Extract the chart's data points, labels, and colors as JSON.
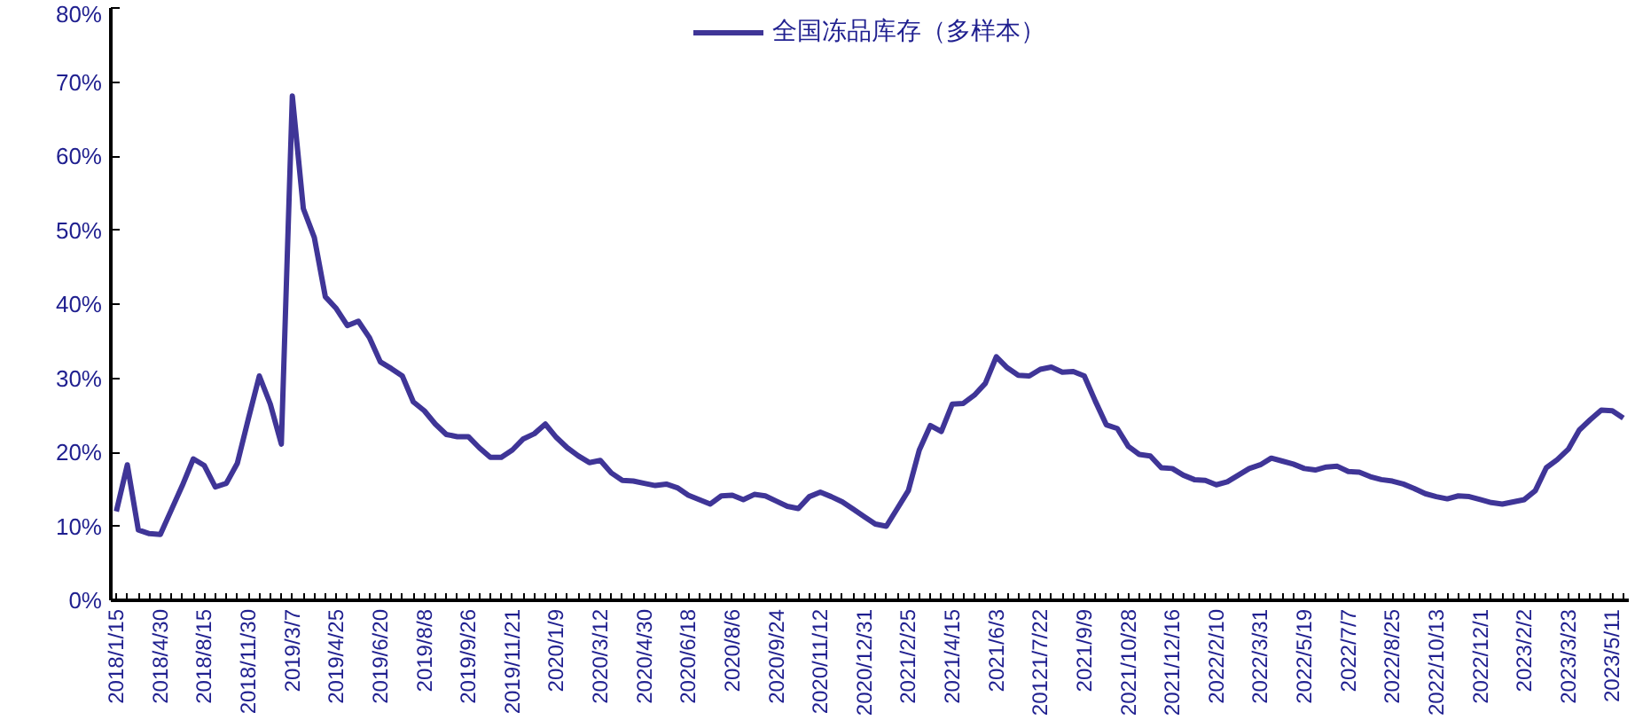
{
  "chart_data": {
    "type": "line",
    "legend": "top",
    "grid": false,
    "marker": "none",
    "line_style": "solid",
    "categories": [
      "2018/1/15",
      null,
      null,
      null,
      "2018/4/30",
      null,
      null,
      null,
      "2018/8/15",
      null,
      null,
      null,
      "2018/11/30",
      null,
      null,
      null,
      "2019/3/7",
      null,
      null,
      null,
      "2019/4/25",
      null,
      null,
      null,
      "2019/6/20",
      null,
      null,
      null,
      "2019/8/8",
      null,
      null,
      null,
      "2019/9/26",
      null,
      null,
      null,
      "2019/11/21",
      null,
      null,
      null,
      "2020/1/9",
      null,
      null,
      null,
      "2020/3/12",
      null,
      null,
      null,
      "2020/4/30",
      null,
      null,
      null,
      "2020/6/18",
      null,
      null,
      null,
      "2020/8/6",
      null,
      null,
      null,
      "2020/9/24",
      null,
      null,
      null,
      "2020/11/12",
      null,
      null,
      null,
      "2020/12/31",
      null,
      null,
      null,
      "2021/2/25",
      null,
      null,
      null,
      "2021/4/15",
      null,
      null,
      null,
      "2021/6/3",
      null,
      null,
      null,
      "20121/7/22",
      null,
      null,
      null,
      "2021/9/9",
      null,
      null,
      null,
      "2021/10/28",
      null,
      null,
      null,
      "2021/12/16",
      null,
      null,
      null,
      "2022/2/10",
      null,
      null,
      null,
      "2022/3/31",
      null,
      null,
      null,
      "2022/5/19",
      null,
      null,
      null,
      "2022/7/7",
      null,
      null,
      null,
      "2022/8/25",
      null,
      null,
      null,
      "2022/10/13",
      null,
      null,
      null,
      "2022/12/1",
      null,
      null,
      null,
      "2023/2/2",
      null,
      null,
      null,
      "2023/3/23",
      null,
      null,
      null,
      "2023/5/11",
      null
    ],
    "ylim": [
      0,
      80
    ],
    "yticks": [
      {
        "value": 0,
        "label": "0%"
      },
      {
        "value": 10,
        "label": "10%"
      },
      {
        "value": 20,
        "label": "20%"
      },
      {
        "value": 30,
        "label": "30%"
      },
      {
        "value": 40,
        "label": "40%"
      },
      {
        "value": 50,
        "label": "50%"
      },
      {
        "value": 60,
        "label": "60%"
      },
      {
        "value": 70,
        "label": "70%"
      },
      {
        "value": 80,
        "label": "80%"
      }
    ],
    "series": [
      {
        "name": "全国冻品库存（多样本）",
        "color": "#3f3597",
        "values": [
          12.0,
          18.3,
          9.5,
          9.0,
          8.9,
          12.2,
          15.5,
          19.1,
          18.2,
          15.3,
          15.8,
          18.5,
          24.5,
          30.3,
          26.5,
          21.1,
          68.1,
          52.9,
          49.0,
          41.0,
          39.4,
          37.1,
          37.7,
          35.5,
          32.2,
          31.3,
          30.3,
          26.8,
          25.6,
          23.8,
          22.4,
          22.1,
          22.1,
          20.6,
          19.3,
          19.3,
          20.3,
          21.8,
          22.5,
          23.8,
          22.0,
          20.6,
          19.5,
          18.6,
          18.9,
          17.2,
          16.2,
          16.1,
          15.8,
          15.5,
          15.7,
          15.2,
          14.2,
          13.6,
          13.0,
          14.1,
          14.2,
          13.6,
          14.3,
          14.1,
          13.4,
          12.7,
          12.4,
          14.0,
          14.6,
          14.0,
          13.3,
          12.3,
          11.3,
          10.3,
          10.0,
          12.4,
          14.8,
          20.3,
          23.6,
          22.8,
          26.5,
          26.6,
          27.7,
          29.3,
          32.9,
          31.4,
          30.4,
          30.3,
          31.2,
          31.5,
          30.8,
          30.9,
          30.3,
          26.9,
          23.7,
          23.2,
          20.8,
          19.7,
          19.5,
          17.9,
          17.8,
          16.9,
          16.3,
          16.2,
          15.6,
          16.0,
          16.9,
          17.8,
          18.3,
          19.2,
          18.8,
          18.4,
          17.8,
          17.6,
          18.0,
          18.1,
          17.4,
          17.3,
          16.7,
          16.3,
          16.1,
          15.7,
          15.1,
          14.4,
          14.0,
          13.7,
          14.1,
          14.0,
          13.6,
          13.2,
          13.0,
          13.3,
          13.6,
          14.8,
          17.9,
          19.0,
          20.4,
          23.0,
          24.4,
          25.7,
          25.6,
          24.6
        ]
      }
    ]
  }
}
